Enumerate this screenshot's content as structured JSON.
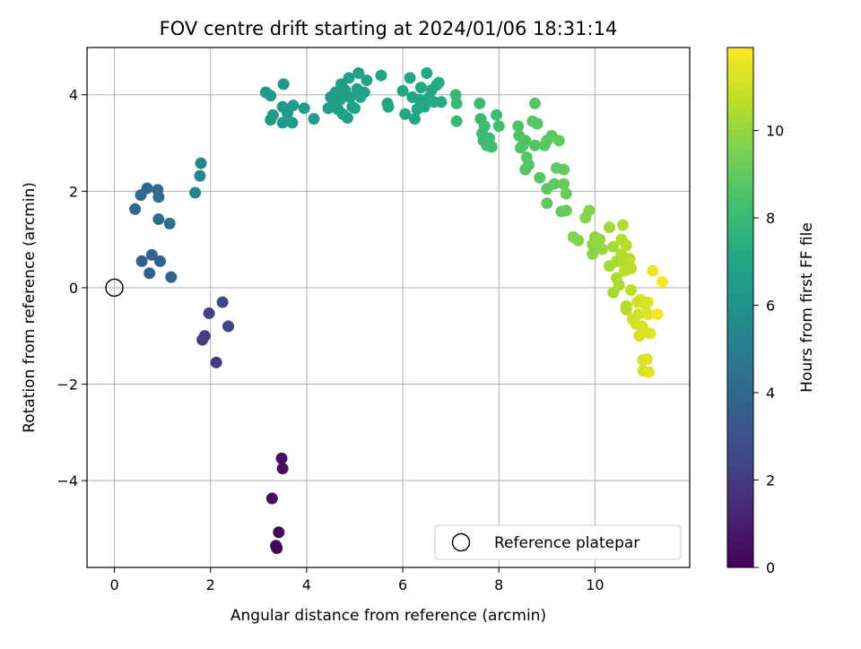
{
  "chart_data": {
    "type": "scatter",
    "title": "FOV centre drift starting at 2024/01/06 18:31:14",
    "xlabel": "Angular distance from reference (arcmin)",
    "ylabel": "Rotation from reference (arcmin)",
    "xlim": [
      -0.57,
      11.97
    ],
    "ylim": [
      -5.8,
      4.98
    ],
    "xticks": [
      0,
      2,
      4,
      6,
      8,
      10
    ],
    "yticks": [
      -4,
      -2,
      0,
      2,
      4
    ],
    "grid": true,
    "legend_position": "lower-right",
    "legend": [
      {
        "name": "Reference platepar",
        "marker": "open-circle"
      }
    ],
    "reference_point": {
      "x": 0,
      "y": 0
    },
    "colorbar": {
      "label": "Hours from first FF file",
      "colormap": "viridis",
      "range": [
        0,
        11.9
      ],
      "ticks": [
        0,
        2,
        4,
        6,
        8,
        10
      ]
    },
    "points": [
      {
        "x": 3.36,
        "y": -5.35,
        "c": 0.1
      },
      {
        "x": 3.38,
        "y": -5.4,
        "c": 0.15
      },
      {
        "x": 3.42,
        "y": -5.07,
        "c": 0.25
      },
      {
        "x": 3.28,
        "y": -4.37,
        "c": 0.35
      },
      {
        "x": 3.5,
        "y": -3.75,
        "c": 0.45
      },
      {
        "x": 3.48,
        "y": -3.54,
        "c": 0.55
      },
      {
        "x": 2.12,
        "y": -1.55,
        "c": 2.0
      },
      {
        "x": 1.83,
        "y": -1.08,
        "c": 2.1
      },
      {
        "x": 1.88,
        "y": -1.0,
        "c": 2.2
      },
      {
        "x": 1.97,
        "y": -0.53,
        "c": 2.3
      },
      {
        "x": 2.37,
        "y": -0.8,
        "c": 2.4
      },
      {
        "x": 2.25,
        "y": -0.3,
        "c": 2.5
      },
      {
        "x": 0.57,
        "y": 0.55,
        "c": 3.6
      },
      {
        "x": 0.73,
        "y": 0.3,
        "c": 3.6
      },
      {
        "x": 0.78,
        "y": 0.68,
        "c": 3.65
      },
      {
        "x": 0.95,
        "y": 0.55,
        "c": 3.7
      },
      {
        "x": 1.18,
        "y": 0.22,
        "c": 3.7
      },
      {
        "x": 0.43,
        "y": 1.63,
        "c": 4.0
      },
      {
        "x": 0.55,
        "y": 1.92,
        "c": 4.05
      },
      {
        "x": 0.68,
        "y": 2.06,
        "c": 4.1
      },
      {
        "x": 0.9,
        "y": 2.03,
        "c": 4.15
      },
      {
        "x": 0.92,
        "y": 1.88,
        "c": 4.2
      },
      {
        "x": 0.92,
        "y": 1.42,
        "c": 4.25
      },
      {
        "x": 1.15,
        "y": 1.33,
        "c": 4.3
      },
      {
        "x": 1.68,
        "y": 1.97,
        "c": 5.4
      },
      {
        "x": 1.78,
        "y": 2.32,
        "c": 5.45
      },
      {
        "x": 1.8,
        "y": 2.58,
        "c": 5.5
      },
      {
        "x": 3.15,
        "y": 4.05,
        "c": 6.3
      },
      {
        "x": 3.25,
        "y": 3.98,
        "c": 6.3
      },
      {
        "x": 3.52,
        "y": 4.22,
        "c": 6.35
      },
      {
        "x": 3.3,
        "y": 3.58,
        "c": 6.35
      },
      {
        "x": 3.25,
        "y": 3.48,
        "c": 6.4
      },
      {
        "x": 3.5,
        "y": 3.75,
        "c": 6.4
      },
      {
        "x": 3.6,
        "y": 3.62,
        "c": 6.4
      },
      {
        "x": 3.5,
        "y": 3.42,
        "c": 6.45
      },
      {
        "x": 3.7,
        "y": 3.42,
        "c": 6.45
      },
      {
        "x": 3.72,
        "y": 3.78,
        "c": 6.5
      },
      {
        "x": 3.95,
        "y": 3.72,
        "c": 6.5
      },
      {
        "x": 4.15,
        "y": 3.5,
        "c": 6.55
      },
      {
        "x": 4.45,
        "y": 3.72,
        "c": 6.55
      },
      {
        "x": 4.5,
        "y": 3.95,
        "c": 6.6
      },
      {
        "x": 4.6,
        "y": 4.05,
        "c": 6.6
      },
      {
        "x": 4.55,
        "y": 3.8,
        "c": 6.6
      },
      {
        "x": 4.65,
        "y": 3.7,
        "c": 6.65
      },
      {
        "x": 4.7,
        "y": 3.9,
        "c": 6.65
      },
      {
        "x": 4.72,
        "y": 4.22,
        "c": 6.65
      },
      {
        "x": 4.8,
        "y": 4.1,
        "c": 6.7
      },
      {
        "x": 4.75,
        "y": 3.6,
        "c": 6.7
      },
      {
        "x": 4.85,
        "y": 3.52,
        "c": 6.7
      },
      {
        "x": 4.88,
        "y": 4.35,
        "c": 6.75
      },
      {
        "x": 4.9,
        "y": 3.95,
        "c": 6.75
      },
      {
        "x": 4.95,
        "y": 3.75,
        "c": 6.75
      },
      {
        "x": 5.0,
        "y": 3.72,
        "c": 6.8
      },
      {
        "x": 5.05,
        "y": 4.12,
        "c": 6.8
      },
      {
        "x": 5.08,
        "y": 4.45,
        "c": 6.8
      },
      {
        "x": 5.12,
        "y": 3.95,
        "c": 6.85
      },
      {
        "x": 5.2,
        "y": 4.05,
        "c": 6.85
      },
      {
        "x": 5.25,
        "y": 4.3,
        "c": 6.85
      },
      {
        "x": 5.55,
        "y": 4.4,
        "c": 6.9
      },
      {
        "x": 5.68,
        "y": 3.82,
        "c": 6.9
      },
      {
        "x": 5.7,
        "y": 3.75,
        "c": 6.9
      },
      {
        "x": 6.0,
        "y": 4.08,
        "c": 7.0
      },
      {
        "x": 6.05,
        "y": 3.6,
        "c": 7.0
      },
      {
        "x": 6.15,
        "y": 4.35,
        "c": 7.05
      },
      {
        "x": 6.2,
        "y": 3.95,
        "c": 7.05
      },
      {
        "x": 6.25,
        "y": 3.5,
        "c": 7.05
      },
      {
        "x": 6.3,
        "y": 3.7,
        "c": 7.1
      },
      {
        "x": 6.35,
        "y": 3.9,
        "c": 7.1
      },
      {
        "x": 6.38,
        "y": 4.15,
        "c": 7.1
      },
      {
        "x": 6.45,
        "y": 3.75,
        "c": 7.15
      },
      {
        "x": 6.5,
        "y": 4.45,
        "c": 7.15
      },
      {
        "x": 6.55,
        "y": 3.95,
        "c": 7.15
      },
      {
        "x": 6.6,
        "y": 4.1,
        "c": 7.2
      },
      {
        "x": 6.65,
        "y": 3.85,
        "c": 7.2
      },
      {
        "x": 6.7,
        "y": 4.2,
        "c": 7.2
      },
      {
        "x": 6.75,
        "y": 4.25,
        "c": 7.25
      },
      {
        "x": 6.8,
        "y": 3.85,
        "c": 7.25
      },
      {
        "x": 7.1,
        "y": 4.0,
        "c": 7.9
      },
      {
        "x": 7.12,
        "y": 3.82,
        "c": 7.9
      },
      {
        "x": 7.12,
        "y": 3.45,
        "c": 7.95
      },
      {
        "x": 7.6,
        "y": 3.82,
        "c": 8.0
      },
      {
        "x": 7.62,
        "y": 3.5,
        "c": 8.0
      },
      {
        "x": 7.65,
        "y": 3.2,
        "c": 8.05
      },
      {
        "x": 7.68,
        "y": 3.05,
        "c": 8.05
      },
      {
        "x": 7.7,
        "y": 3.35,
        "c": 8.1
      },
      {
        "x": 7.75,
        "y": 2.95,
        "c": 8.1
      },
      {
        "x": 7.8,
        "y": 3.1,
        "c": 8.1
      },
      {
        "x": 7.85,
        "y": 2.92,
        "c": 8.15
      },
      {
        "x": 7.95,
        "y": 3.58,
        "c": 8.15
      },
      {
        "x": 8.0,
        "y": 3.35,
        "c": 8.2
      },
      {
        "x": 8.4,
        "y": 3.35,
        "c": 8.55
      },
      {
        "x": 8.42,
        "y": 3.15,
        "c": 8.55
      },
      {
        "x": 8.45,
        "y": 2.9,
        "c": 8.6
      },
      {
        "x": 8.5,
        "y": 2.95,
        "c": 8.6
      },
      {
        "x": 8.55,
        "y": 3.05,
        "c": 8.6
      },
      {
        "x": 8.58,
        "y": 2.7,
        "c": 8.65
      },
      {
        "x": 8.55,
        "y": 2.45,
        "c": 8.65
      },
      {
        "x": 8.62,
        "y": 2.55,
        "c": 8.7
      },
      {
        "x": 8.7,
        "y": 3.45,
        "c": 8.7
      },
      {
        "x": 8.75,
        "y": 3.82,
        "c": 8.7
      },
      {
        "x": 8.75,
        "y": 2.95,
        "c": 8.75
      },
      {
        "x": 8.8,
        "y": 3.4,
        "c": 8.75
      },
      {
        "x": 8.85,
        "y": 2.28,
        "c": 8.8
      },
      {
        "x": 8.95,
        "y": 2.95,
        "c": 8.8
      },
      {
        "x": 9.0,
        "y": 3.05,
        "c": 8.85
      },
      {
        "x": 9.0,
        "y": 2.05,
        "c": 8.85
      },
      {
        "x": 9.0,
        "y": 1.75,
        "c": 8.9
      },
      {
        "x": 9.1,
        "y": 3.15,
        "c": 8.9
      },
      {
        "x": 9.15,
        "y": 2.15,
        "c": 8.95
      },
      {
        "x": 9.2,
        "y": 2.48,
        "c": 8.95
      },
      {
        "x": 9.25,
        "y": 3.05,
        "c": 9.0
      },
      {
        "x": 9.3,
        "y": 1.58,
        "c": 9.0
      },
      {
        "x": 9.35,
        "y": 2.45,
        "c": 9.05
      },
      {
        "x": 9.35,
        "y": 2.15,
        "c": 9.05
      },
      {
        "x": 9.4,
        "y": 1.95,
        "c": 9.1
      },
      {
        "x": 9.4,
        "y": 1.6,
        "c": 9.1
      },
      {
        "x": 9.55,
        "y": 1.05,
        "c": 9.6
      },
      {
        "x": 9.65,
        "y": 0.98,
        "c": 9.65
      },
      {
        "x": 9.8,
        "y": 1.45,
        "c": 9.7
      },
      {
        "x": 9.88,
        "y": 1.6,
        "c": 9.75
      },
      {
        "x": 9.95,
        "y": 0.9,
        "c": 9.8
      },
      {
        "x": 9.95,
        "y": 0.7,
        "c": 9.8
      },
      {
        "x": 10.0,
        "y": 1.05,
        "c": 9.85
      },
      {
        "x": 10.02,
        "y": 0.95,
        "c": 9.9
      },
      {
        "x": 10.05,
        "y": 0.95,
        "c": 9.95
      },
      {
        "x": 10.1,
        "y": 1.0,
        "c": 10.0
      },
      {
        "x": 10.15,
        "y": 0.8,
        "c": 10.0
      },
      {
        "x": 10.3,
        "y": 1.25,
        "c": 10.2
      },
      {
        "x": 10.3,
        "y": 0.45,
        "c": 10.25
      },
      {
        "x": 10.38,
        "y": -0.1,
        "c": 10.3
      },
      {
        "x": 10.38,
        "y": 0.85,
        "c": 10.3
      },
      {
        "x": 10.45,
        "y": 0.55,
        "c": 10.35
      },
      {
        "x": 10.45,
        "y": 0.2,
        "c": 10.35
      },
      {
        "x": 10.5,
        "y": 0.05,
        "c": 10.4
      },
      {
        "x": 10.55,
        "y": 1.0,
        "c": 10.45
      },
      {
        "x": 10.55,
        "y": 0.7,
        "c": 10.45
      },
      {
        "x": 10.58,
        "y": 1.3,
        "c": 10.5
      },
      {
        "x": 10.6,
        "y": 0.5,
        "c": 10.5
      },
      {
        "x": 10.62,
        "y": 0.35,
        "c": 10.55
      },
      {
        "x": 10.65,
        "y": 0.88,
        "c": 10.55
      },
      {
        "x": 10.65,
        "y": -0.38,
        "c": 10.6
      },
      {
        "x": 10.65,
        "y": -0.45,
        "c": 10.6
      },
      {
        "x": 10.72,
        "y": 0.6,
        "c": 10.65
      },
      {
        "x": 10.75,
        "y": 0.4,
        "c": 10.65
      },
      {
        "x": 10.75,
        "y": -0.05,
        "c": 10.7
      },
      {
        "x": 10.78,
        "y": -0.65,
        "c": 11.0
      },
      {
        "x": 10.85,
        "y": -0.75,
        "c": 11.0
      },
      {
        "x": 10.88,
        "y": -0.3,
        "c": 11.05
      },
      {
        "x": 10.9,
        "y": -0.55,
        "c": 11.05
      },
      {
        "x": 10.92,
        "y": -1.0,
        "c": 11.1
      },
      {
        "x": 10.95,
        "y": -0.25,
        "c": 11.1
      },
      {
        "x": 10.98,
        "y": -0.8,
        "c": 11.15
      },
      {
        "x": 11.0,
        "y": -1.5,
        "c": 11.15
      },
      {
        "x": 11.0,
        "y": -1.72,
        "c": 11.2
      },
      {
        "x": 11.05,
        "y": -0.35,
        "c": 11.2
      },
      {
        "x": 11.05,
        "y": -0.92,
        "c": 11.25
      },
      {
        "x": 11.08,
        "y": -1.48,
        "c": 11.25
      },
      {
        "x": 11.1,
        "y": -0.55,
        "c": 11.3
      },
      {
        "x": 11.12,
        "y": -1.75,
        "c": 11.3
      },
      {
        "x": 11.15,
        "y": -0.95,
        "c": 11.35
      },
      {
        "x": 11.1,
        "y": -0.3,
        "c": 11.35
      },
      {
        "x": 11.2,
        "y": 0.35,
        "c": 11.6
      },
      {
        "x": 11.3,
        "y": -0.55,
        "c": 11.7
      },
      {
        "x": 11.4,
        "y": 0.12,
        "c": 11.8
      }
    ]
  }
}
